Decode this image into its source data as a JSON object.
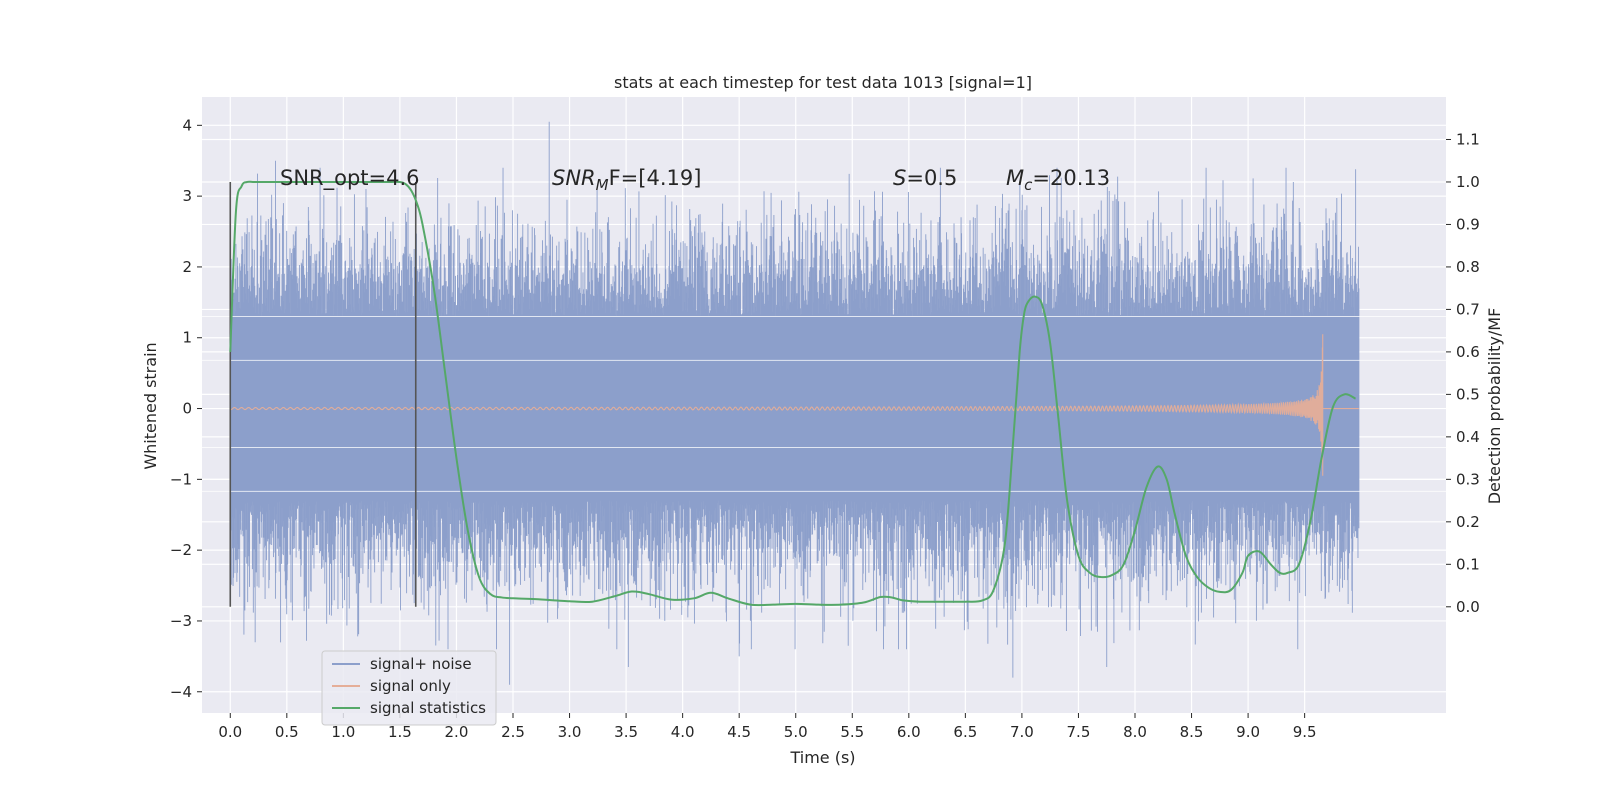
{
  "chart_data": {
    "type": "line",
    "title": "stats at each timestep for test data 1013 [signal=1]",
    "xlabel": "Time (s)",
    "ylabel": "Whitened strain",
    "ylabel_right": "Detection probability/MF",
    "xlim": [
      -0.25,
      10.75
    ],
    "ylim": [
      -4.3,
      4.4
    ],
    "ylim_right": [
      -0.25,
      1.2
    ],
    "x_ticks": [
      "0.0",
      "0.5",
      "1.0",
      "1.5",
      "2.0",
      "2.5",
      "3.0",
      "3.5",
      "4.0",
      "4.5",
      "5.0",
      "5.5",
      "6.0",
      "6.5",
      "7.0",
      "7.5",
      "8.0",
      "8.5",
      "9.0",
      "9.5"
    ],
    "y_ticks": [
      "4",
      "3",
      "2",
      "1",
      "0",
      "−1",
      "−2",
      "−3",
      "−4"
    ],
    "y_ticks_right": [
      "1.1",
      "1.0",
      "0.9",
      "0.8",
      "0.7",
      "0.6",
      "0.5",
      "0.4",
      "0.3",
      "0.2",
      "0.1",
      "0.0"
    ],
    "grid": true,
    "legend_position": "lower-left",
    "annotations": {
      "snr_opt": "SNR_opt=4.6",
      "snr_mf_sym": "SNR",
      "snr_mf_sub": "M",
      "snr_mf_rest": "F=[4.19]",
      "s_sym": "S",
      "s_rest": "=0.5",
      "mc_sym": "M",
      "mc_sub": "c",
      "mc_rest": "=20.13"
    },
    "vertical_markers": [
      0.0,
      1.64
    ],
    "series": [
      {
        "name": "signal+ noise",
        "color": "#8c9fcb",
        "x_range": [
          0.0,
          9.98
        ],
        "band_abs": 1.3,
        "spike_peaks_high": [
          [
            0.4,
            3.5
          ],
          [
            2.82,
            4.05
          ],
          [
            1.2,
            3.1
          ],
          [
            9.4,
            3.2
          ],
          [
            7.0,
            2.8
          ]
        ],
        "spike_peaks_low": [
          [
            2.47,
            -3.9
          ],
          [
            0.22,
            -3.3
          ],
          [
            6.92,
            -3.8
          ],
          [
            7.75,
            -3.65
          ],
          [
            4.5,
            -3.5
          ],
          [
            3.52,
            -3.65
          ]
        ]
      },
      {
        "name": "signal only",
        "color": "#e5ae98",
        "chirp_end": 9.66,
        "peak": 1.05
      },
      {
        "name": "signal statistics",
        "color": "#55a868",
        "axis": "right",
        "x": [
          0.0,
          0.05,
          0.1,
          0.15,
          0.2,
          0.3,
          0.5,
          0.8,
          1.0,
          1.2,
          1.4,
          1.5,
          1.55,
          1.6,
          1.65,
          1.7,
          1.8,
          1.9,
          2.0,
          2.1,
          2.2,
          2.3,
          2.4,
          2.5,
          2.7,
          3.0,
          3.2,
          3.4,
          3.55,
          3.7,
          3.9,
          4.1,
          4.25,
          4.4,
          4.6,
          4.8,
          5.0,
          5.2,
          5.4,
          5.6,
          5.75,
          5.85,
          5.95,
          6.1,
          6.3,
          6.5,
          6.65,
          6.75,
          6.85,
          6.92,
          6.98,
          7.02,
          7.06,
          7.12,
          7.18,
          7.25,
          7.32,
          7.4,
          7.5,
          7.6,
          7.7,
          7.8,
          7.9,
          8.0,
          8.1,
          8.2,
          8.28,
          8.35,
          8.45,
          8.55,
          8.65,
          8.75,
          8.85,
          8.95,
          9.0,
          9.1,
          9.2,
          9.28,
          9.35,
          9.45,
          9.55,
          9.65,
          9.75,
          9.85,
          9.95
        ],
        "y": [
          0.6,
          0.93,
          0.99,
          1.0,
          1.0,
          1.0,
          1.0,
          1.0,
          1.0,
          1.0,
          1.0,
          1.0,
          0.995,
          0.98,
          0.95,
          0.9,
          0.75,
          0.55,
          0.35,
          0.18,
          0.07,
          0.03,
          0.022,
          0.02,
          0.018,
          0.013,
          0.012,
          0.025,
          0.036,
          0.03,
          0.017,
          0.02,
          0.033,
          0.02,
          0.005,
          0.005,
          0.007,
          0.005,
          0.005,
          0.01,
          0.023,
          0.022,
          0.015,
          0.012,
          0.012,
          0.012,
          0.015,
          0.04,
          0.15,
          0.38,
          0.6,
          0.69,
          0.72,
          0.73,
          0.71,
          0.62,
          0.45,
          0.25,
          0.12,
          0.08,
          0.07,
          0.075,
          0.1,
          0.18,
          0.28,
          0.33,
          0.3,
          0.22,
          0.12,
          0.07,
          0.045,
          0.035,
          0.04,
          0.08,
          0.12,
          0.13,
          0.1,
          0.08,
          0.08,
          0.1,
          0.2,
          0.35,
          0.47,
          0.5,
          0.49
        ]
      }
    ]
  }
}
